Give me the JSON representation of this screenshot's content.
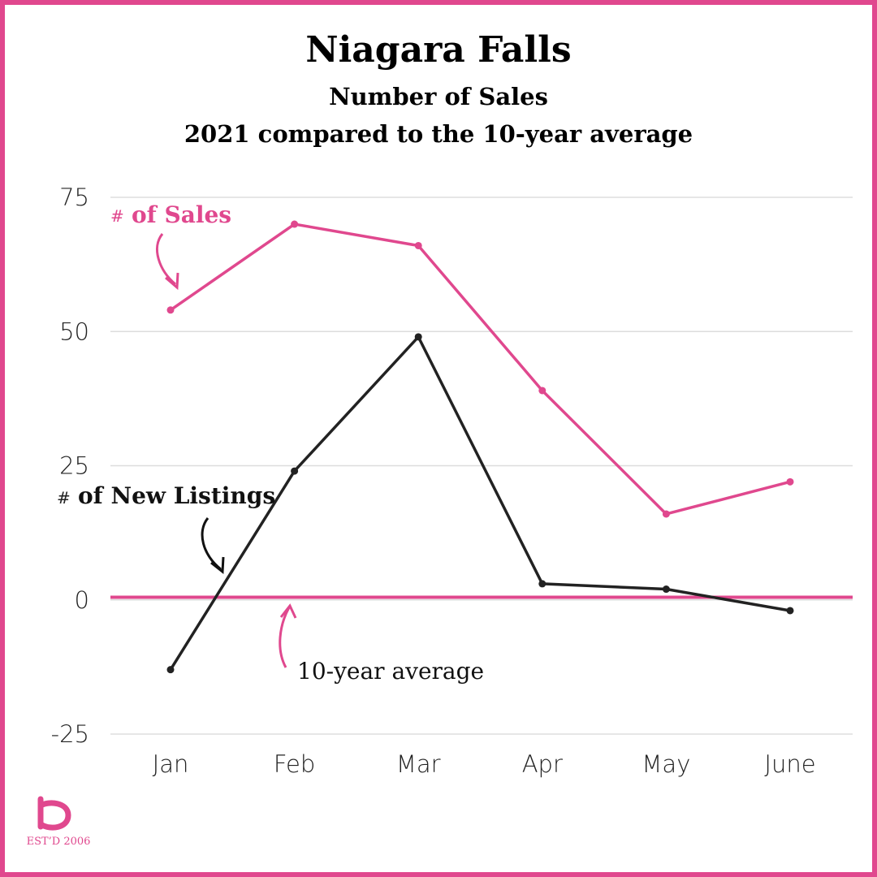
{
  "header": {
    "title": "Niagara Falls",
    "subtitle": "Number of Sales",
    "subtitle2": "2021 compared to the 10-year average"
  },
  "annotations": {
    "sales_hash": "#",
    "sales_label": "of Sales",
    "listings_hash": "#",
    "listings_label": "of New Listings",
    "average_label": "10-year average"
  },
  "logo": {
    "letter": "b",
    "text": "EST’D 2006"
  },
  "colors": {
    "accent": "#e0488e",
    "dark": "#222222",
    "grid": "#dddddd"
  },
  "chart_data": {
    "type": "line",
    "title": "Niagara Falls",
    "categories": [
      "Jan",
      "Feb",
      "Mar",
      "Apr",
      "May",
      "June"
    ],
    "series": [
      {
        "name": "# of Sales",
        "color": "#e0488e",
        "values": [
          54,
          70,
          66,
          39,
          16,
          22
        ]
      },
      {
        "name": "# of New Listings",
        "color": "#222222",
        "values": [
          -13,
          24,
          49,
          3,
          2,
          -2
        ]
      }
    ],
    "reference_line": {
      "name": "10-year average",
      "value": 0.5,
      "color": "#e0488e"
    },
    "yticks": [
      75,
      50,
      25,
      0,
      -25
    ],
    "ylim": [
      -25,
      75
    ],
    "grid": true,
    "xlabel": "",
    "ylabel": ""
  }
}
